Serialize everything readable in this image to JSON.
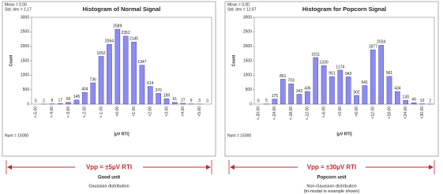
{
  "chart_data": [
    {
      "type": "bar",
      "title": "Histogram of Normal Signal",
      "annotations": [
        "Mean = 0.00",
        "Std. dev = 1.17",
        "Num = 15000"
      ],
      "y_label": "Count",
      "x_label": "[µV RTI]",
      "categories": [
        "<-5.00",
        null,
        "<-4.00",
        null,
        "<-3.00",
        null,
        "<-2.00",
        null,
        "<-1.00",
        null,
        "<0.00",
        null,
        "<1.00",
        null,
        "<2.00",
        null,
        "<3.00",
        null,
        "<4.00",
        null,
        "<5.00",
        null
      ],
      "values": [
        0,
        2,
        9,
        17,
        60,
        145,
        404,
        736,
        1652,
        2064,
        2589,
        2352,
        2145,
        1347,
        614,
        370,
        189,
        61,
        27,
        6,
        3,
        0
      ],
      "color": "#8c8cf0",
      "ylim": [
        0,
        3000
      ],
      "yticks": [
        0,
        500,
        1000,
        1500,
        2000,
        2500,
        3000
      ],
      "grid": false,
      "caption": "Vpp = ±5µV RTI",
      "subcaption": "Good unit",
      "description": [
        "Gaussian distribution"
      ]
    },
    {
      "type": "bar",
      "title": "Histogram for Popcorn Signal",
      "annotations": [
        "Mean = 0.00",
        "Std. dev = 12.67",
        "Num = 15000"
      ],
      "y_label": "Count",
      "x_label": "[µV RTI]",
      "categories": [
        "<-30.00",
        null,
        "<-24.00",
        null,
        "<-18.00",
        null,
        "<-12.00",
        null,
        "<-6.00",
        null,
        "<0.00",
        null,
        "<6.00",
        null,
        "<12.00",
        null,
        "<18.00",
        null,
        "<24.00",
        null,
        "<30.00",
        null
      ],
      "values": [
        0,
        5,
        175,
        861,
        703,
        342,
        436,
        1611,
        1330,
        951,
        1174,
        943,
        302,
        641,
        1877,
        2034,
        961,
        434,
        130,
        46,
        10,
        2
      ],
      "color": "#8c8cf0",
      "ylim": [
        0,
        3000
      ],
      "yticks": [
        0,
        500,
        1000,
        1500,
        2000,
        2500,
        3000
      ],
      "grid": false,
      "caption": "Vpp = ±30µV RTI",
      "subcaption": "Popcorn unit",
      "description": [
        "Non-Gaussian distribution",
        "(tri-modal in example shown)"
      ]
    }
  ]
}
